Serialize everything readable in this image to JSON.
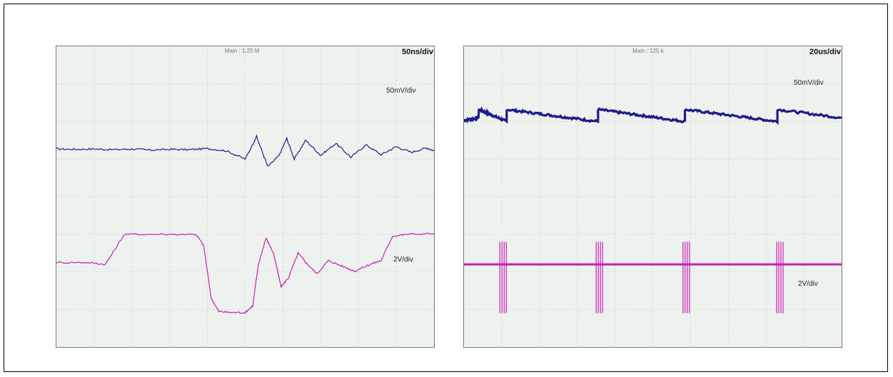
{
  "scopes": [
    {
      "header": "Main : 1.25 M",
      "time_div": "50ns/div",
      "ch1_label": "50mV/div",
      "ch2_label": "2V/div"
    },
    {
      "header": "Main : 125 k",
      "time_div": "20us/div",
      "ch1_label": "50mV/div",
      "ch2_label": "2V/div"
    }
  ],
  "colors": {
    "ch1": "#1c1c8c",
    "ch2": "#c81eb4",
    "grid": "#b8c4b8",
    "background": "#eef2ee"
  },
  "chart_data": [
    {
      "type": "line",
      "x_divisions": 10,
      "y_divisions": 8,
      "grid": true,
      "series": [
        {
          "values_div": [
            [
              0,
              5.27
            ],
            [
              0.5,
              5.26
            ],
            [
              1,
              5.27
            ],
            [
              1.5,
              5.25
            ],
            [
              2,
              5.27
            ],
            [
              2.5,
              5.24
            ],
            [
              3,
              5.26
            ],
            [
              3.5,
              5.25
            ],
            [
              4,
              5.28
            ],
            [
              4.5,
              5.22
            ],
            [
              5,
              5.0
            ],
            [
              5.3,
              5.6
            ],
            [
              5.6,
              4.8
            ],
            [
              5.9,
              5.1
            ],
            [
              6.1,
              5.55
            ],
            [
              6.3,
              5.0
            ],
            [
              6.6,
              5.5
            ],
            [
              7,
              5.1
            ],
            [
              7.4,
              5.42
            ],
            [
              7.8,
              5.05
            ],
            [
              8.2,
              5.38
            ],
            [
              8.6,
              5.12
            ],
            [
              9,
              5.33
            ],
            [
              9.4,
              5.18
            ],
            [
              9.8,
              5.3
            ],
            [
              10,
              5.22
            ]
          ]
        },
        {
          "values_div": [
            [
              0,
              2.25
            ],
            [
              0.8,
              2.25
            ],
            [
              1.3,
              2.2
            ],
            [
              1.8,
              3.0
            ],
            [
              2.5,
              3.0
            ],
            [
              3.7,
              3.0
            ],
            [
              3.9,
              2.7
            ],
            [
              4.1,
              1.3
            ],
            [
              4.3,
              0.95
            ],
            [
              4.6,
              0.92
            ],
            [
              5.0,
              0.92
            ],
            [
              5.2,
              1.1
            ],
            [
              5.35,
              2.2
            ],
            [
              5.55,
              2.9
            ],
            [
              5.75,
              2.5
            ],
            [
              5.95,
              1.6
            ],
            [
              6.15,
              1.85
            ],
            [
              6.4,
              2.5
            ],
            [
              6.65,
              2.2
            ],
            [
              6.9,
              1.95
            ],
            [
              7.2,
              2.3
            ],
            [
              7.5,
              2.18
            ],
            [
              7.9,
              2.02
            ],
            [
              8.3,
              2.2
            ],
            [
              8.6,
              2.3
            ],
            [
              8.9,
              2.95
            ],
            [
              9.3,
              3.0
            ],
            [
              10,
              3.02
            ]
          ]
        }
      ]
    },
    {
      "type": "line",
      "x_divisions": 10,
      "y_divisions": 8,
      "grid": true,
      "series": [
        {
          "ramp_starts_div": [
            0,
            1.13,
            3.55,
            5.85,
            8.3
          ],
          "ramp_high_div": 6.32,
          "ramp_low_div": 6.0
        },
        {
          "baseline_div": 2.2,
          "pulse_start_div": [
            0.95,
            3.5,
            5.8,
            8.28
          ],
          "pulse_high_div": 2.8,
          "pulse_low_div": 0.9
        }
      ]
    }
  ]
}
